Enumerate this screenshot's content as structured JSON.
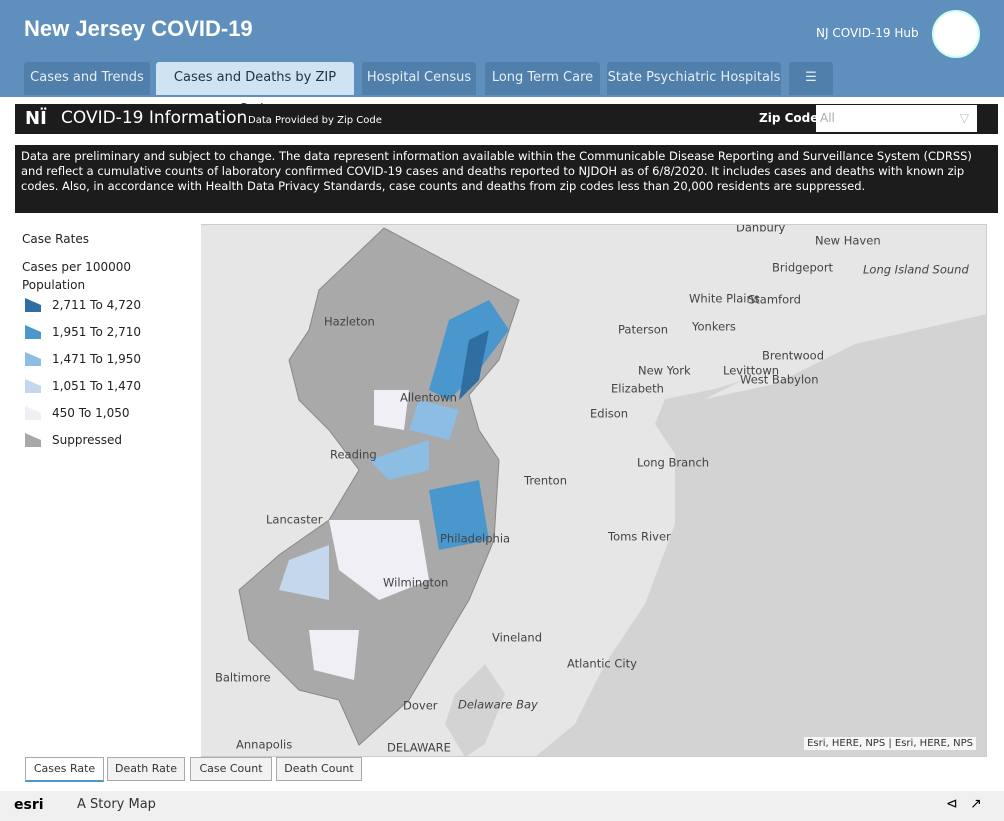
{
  "header": {
    "title": "New Jersey COVID-19",
    "hub": "NJ COVID-19 Hub"
  },
  "tabs": [
    "Cases and Trends",
    "Cases and Deaths by ZIP Code",
    "Hospital Census",
    "Long Term Care",
    "State Psychiatric Hospitals"
  ],
  "info_bar": {
    "title": "COVID-19 Information",
    "subtitle": "Data Provided by Zip Code",
    "filter_label": "Zip Code",
    "filter_value": "All"
  },
  "disclaimer": "Data are preliminary and subject to change. The data represent information available within the Communicable Disease Reporting and Surveillance System (CDRSS) and reflect a cumulative counts of laboratory confirmed COVID-19 cases and deaths reported to NJDOH as of 6/8/2020. It includes cases and deaths with known zip codes. Also, in accordance with Health Data Privacy Standards, case counts and deaths from zip codes less than 20,000 residents are suppressed.",
  "legend": {
    "title": "Case Rates",
    "subtitle": "Cases per 100000 Population",
    "items": [
      {
        "label": "2,711 To 4,720",
        "color": "#2e6ea0"
      },
      {
        "label": "1,951 To 2,710",
        "color": "#4a97cd"
      },
      {
        "label": "1,471 To 1,950",
        "color": "#8cbde2"
      },
      {
        "label": "1,051 To 1,470",
        "color": "#c4d7ec"
      },
      {
        "label": "450 To 1,050",
        "color": "#f1eff6"
      },
      {
        "label": "Suppressed",
        "color": "#a8a8a8"
      }
    ]
  },
  "map_labels": [
    "New Haven",
    "Bridgeport",
    "Long Island Sound",
    "White Plains",
    "Stamford",
    "Yonkers",
    "Paterson",
    "New York",
    "Hazleton",
    "Brentwood",
    "Levittown",
    "West Babylon",
    "Elizabeth",
    "Allentown",
    "Edison",
    "Reading",
    "Long Branch",
    "Trenton",
    "Lancaster",
    "Philadelphia",
    "Toms River",
    "Wilmington",
    "Vineland",
    "Atlantic City",
    "Baltimore",
    "Dover",
    "Delaware Bay",
    "Annapolis",
    "DELAWARE",
    "Danbury"
  ],
  "attribution": "Esri, HERE, NPS | Esri, HERE, NPS",
  "bottom_tabs": [
    "Cases Rate",
    "Death Rate",
    "Case Count",
    "Death Count"
  ],
  "footer": {
    "brand": "esri",
    "text": "A Story Map"
  }
}
